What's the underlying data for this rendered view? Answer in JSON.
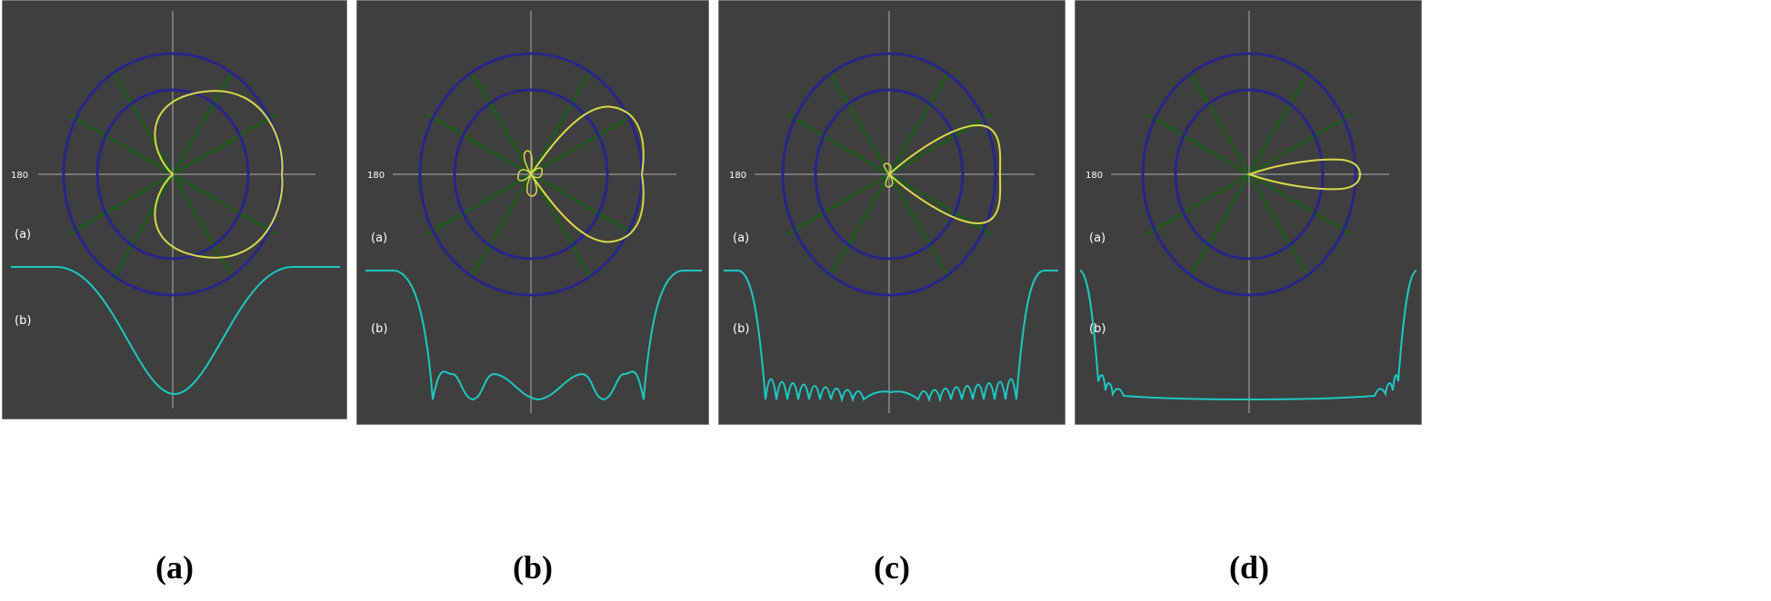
{
  "colors": {
    "panel_background": "#3f3f3f",
    "panel_border": "#b5b5b5",
    "polar_rings": "#26268a",
    "polar_spokes": "#1f5a1c",
    "crosshair": "#8a8a8a",
    "polar_pattern": "#d8d84a",
    "array_factor_curve": "#1cc8c2"
  },
  "panels": [
    {
      "caption": "(a)",
      "angle_label": "180",
      "label_a": "(a)",
      "label_b": "(b)",
      "pattern": "cardioid (broad main beam toward 0°)",
      "bottom_curve": "single smooth dip"
    },
    {
      "caption": "(b)",
      "angle_label": "180",
      "label_a": "(a)",
      "label_b": "(b)",
      "pattern": "main lobe toward 0° with small back lobes",
      "bottom_curve": "few sidelobe ripples"
    },
    {
      "caption": "(c)",
      "angle_label": "180",
      "label_a": "(a)",
      "label_b": "(b)",
      "pattern": "narrower main lobe toward 0°",
      "bottom_curve": "many small sidelobe ripples"
    },
    {
      "caption": "(d)",
      "angle_label": "180",
      "label_a": "(a)",
      "label_b": "(b)",
      "pattern": "very narrow pencil beam toward 0°",
      "bottom_curve": "dense ripples concentrated at edges"
    }
  ]
}
